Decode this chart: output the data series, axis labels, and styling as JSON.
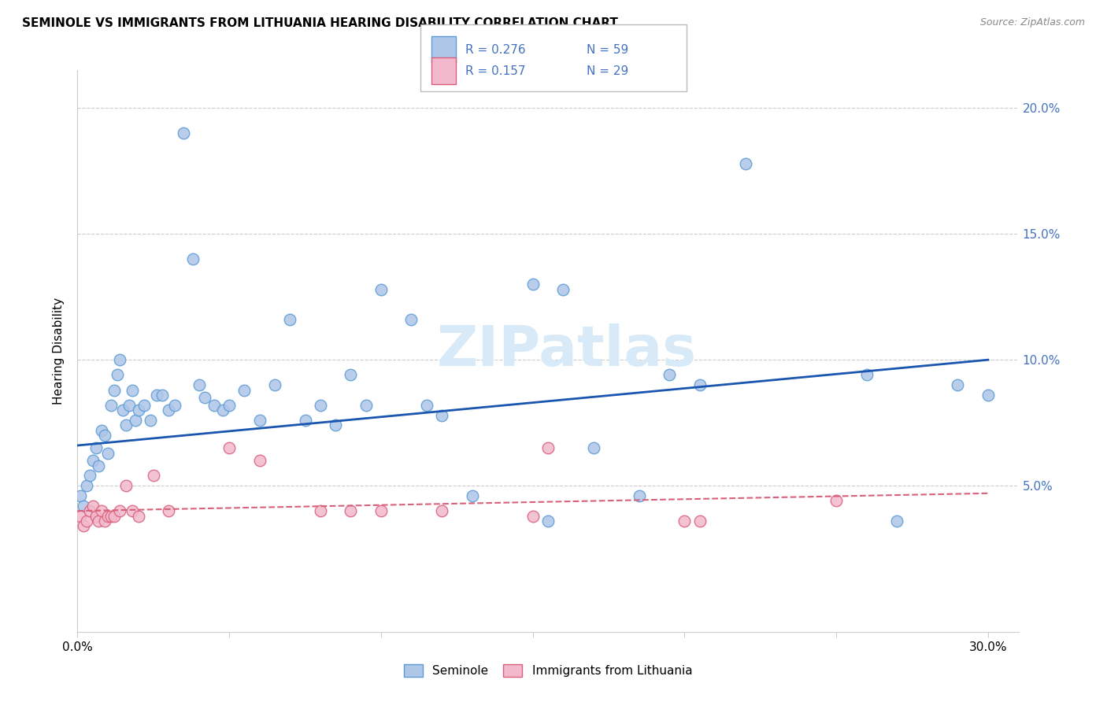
{
  "title": "SEMINOLE VS IMMIGRANTS FROM LITHUANIA HEARING DISABILITY CORRELATION CHART",
  "source": "Source: ZipAtlas.com",
  "ylabel": "Hearing Disability",
  "xlim": [
    0.0,
    0.31
  ],
  "ylim": [
    -0.008,
    0.215
  ],
  "seminole_color": "#aec6e8",
  "seminole_edge_color": "#5b9bd5",
  "lithuania_color": "#f2b8cc",
  "lithuania_edge_color": "#d9607a",
  "line_blue": "#1a56b0",
  "line_pink": "#d9607a",
  "legend_color": "#4472c4",
  "watermark_color": "#d8eaf7",
  "seminole_x": [
    0.001,
    0.002,
    0.003,
    0.004,
    0.005,
    0.006,
    0.007,
    0.008,
    0.009,
    0.01,
    0.011,
    0.012,
    0.013,
    0.014,
    0.015,
    0.016,
    0.017,
    0.018,
    0.019,
    0.02,
    0.022,
    0.024,
    0.026,
    0.028,
    0.03,
    0.032,
    0.035,
    0.038,
    0.04,
    0.042,
    0.045,
    0.048,
    0.05,
    0.055,
    0.06,
    0.065,
    0.07,
    0.075,
    0.08,
    0.085,
    0.09,
    0.095,
    0.1,
    0.11,
    0.115,
    0.12,
    0.13,
    0.15,
    0.155,
    0.16,
    0.17,
    0.185,
    0.195,
    0.205,
    0.22,
    0.26,
    0.27,
    0.29,
    0.3
  ],
  "seminole_y": [
    0.046,
    0.042,
    0.05,
    0.054,
    0.06,
    0.065,
    0.058,
    0.072,
    0.07,
    0.063,
    0.082,
    0.088,
    0.094,
    0.1,
    0.08,
    0.074,
    0.082,
    0.088,
    0.076,
    0.08,
    0.082,
    0.076,
    0.086,
    0.086,
    0.08,
    0.082,
    0.19,
    0.14,
    0.09,
    0.085,
    0.082,
    0.08,
    0.082,
    0.088,
    0.076,
    0.09,
    0.116,
    0.076,
    0.082,
    0.074,
    0.094,
    0.082,
    0.128,
    0.116,
    0.082,
    0.078,
    0.046,
    0.13,
    0.036,
    0.128,
    0.065,
    0.046,
    0.094,
    0.09,
    0.178,
    0.094,
    0.036,
    0.09,
    0.086
  ],
  "lithuania_x": [
    0.001,
    0.002,
    0.003,
    0.004,
    0.005,
    0.006,
    0.007,
    0.008,
    0.009,
    0.01,
    0.011,
    0.012,
    0.014,
    0.016,
    0.018,
    0.02,
    0.025,
    0.03,
    0.05,
    0.06,
    0.08,
    0.09,
    0.1,
    0.12,
    0.15,
    0.155,
    0.2,
    0.205,
    0.25
  ],
  "lithuania_y": [
    0.038,
    0.034,
    0.036,
    0.04,
    0.042,
    0.038,
    0.036,
    0.04,
    0.036,
    0.038,
    0.038,
    0.038,
    0.04,
    0.05,
    0.04,
    0.038,
    0.054,
    0.04,
    0.065,
    0.06,
    0.04,
    0.04,
    0.04,
    0.04,
    0.038,
    0.065,
    0.036,
    0.036,
    0.044
  ],
  "blue_line_x": [
    0.0,
    0.3
  ],
  "blue_line_y": [
    0.066,
    0.1
  ],
  "pink_line_x": [
    0.0,
    0.3
  ],
  "pink_line_y": [
    0.04,
    0.047
  ]
}
